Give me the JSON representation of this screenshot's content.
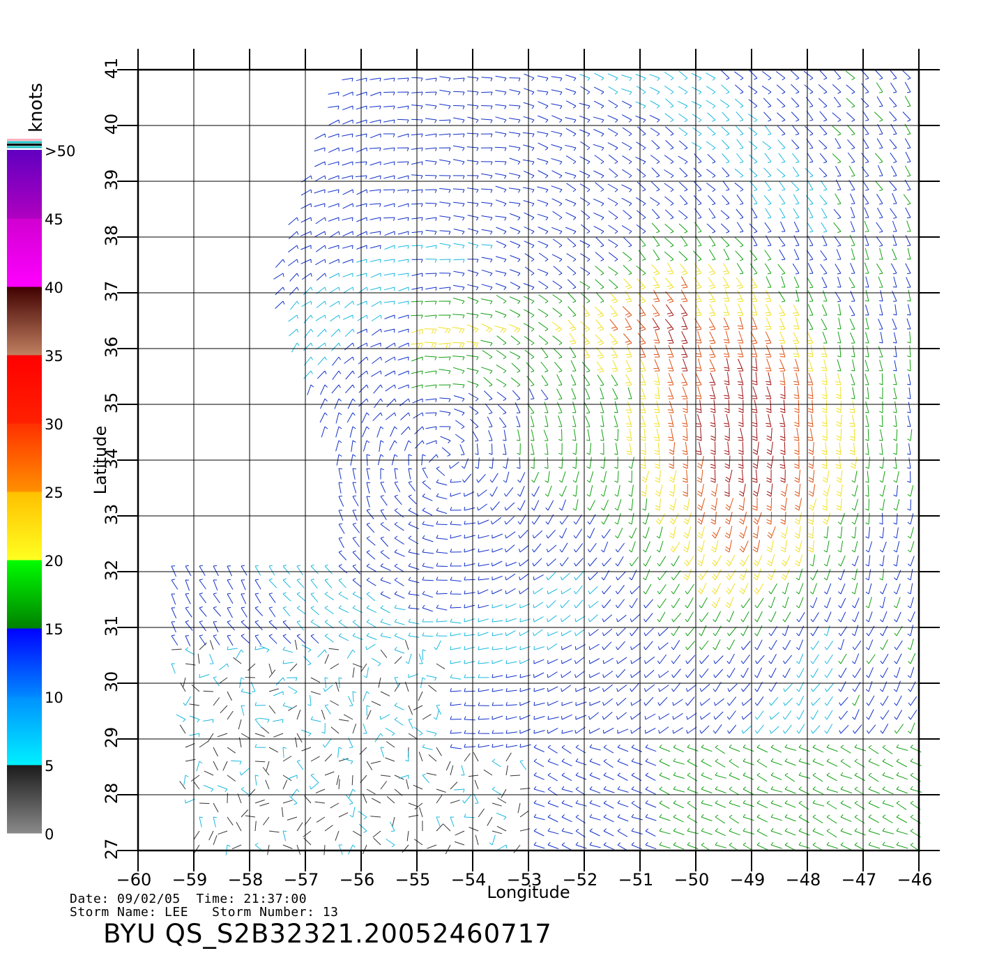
{
  "colorbar": {
    "title": "knots",
    "tick_labels": [
      ">50",
      "45",
      "40",
      "35",
      "30",
      "25",
      "20",
      "15",
      "10",
      "5",
      "0"
    ],
    "bands": [
      {
        "range": "0-5",
        "from": "#8a8a8a",
        "to": "#1a1a1a"
      },
      {
        "range": "5-10",
        "from": "#00f0ff",
        "to": "#0090ff"
      },
      {
        "range": "10-15",
        "from": "#0088ff",
        "to": "#0000ff"
      },
      {
        "range": "15-20",
        "from": "#008000",
        "to": "#00ff00"
      },
      {
        "range": "20-25",
        "from": "#ffff20",
        "to": "#ffc000"
      },
      {
        "range": "25-30",
        "from": "#ff9000",
        "to": "#ff3000"
      },
      {
        "range": "30-35",
        "from": "#ff2000",
        "to": "#ff0000"
      },
      {
        "range": "35-40",
        "from": "#c08060",
        "to": "#400000"
      },
      {
        "range": "40-45",
        "from": "#ff00ff",
        "to": "#d000d0"
      },
      {
        "range": "45-50",
        "from": "#b000c0",
        "to": "#6000c0"
      }
    ]
  },
  "map": {
    "x_label": "Longitude",
    "y_label": "Latitude",
    "x_range": [
      -60,
      -46
    ],
    "y_range": [
      27,
      41
    ],
    "x_tick_labels": [
      "−60",
      "−59",
      "−58",
      "−57",
      "−56",
      "−55",
      "−54",
      "−53",
      "−52",
      "−51",
      "−50",
      "−49",
      "−48",
      "−47",
      "−46"
    ],
    "y_tick_labels": [
      "27",
      "28",
      "29",
      "30",
      "31",
      "32",
      "33",
      "34",
      "35",
      "36",
      "37",
      "38",
      "39",
      "40",
      "41"
    ],
    "storm_center": {
      "lon": -54.5,
      "lat": 34.0
    },
    "wind_colors": {
      "calm": "#333333",
      "light": "#1ab8e0",
      "moderate": "#1030c8",
      "fresh": "#10a010",
      "strong": "#f0e020",
      "gale": "#e05010",
      "storm": "#a01010",
      "violent": "#c000c0"
    }
  },
  "caption": {
    "line1": "Date: 09/02/05  Time: 21:37:00",
    "line2": "Storm Name: LEE   Storm Number: 13",
    "title": "BYU QS_S2B32321.20052460717"
  }
}
